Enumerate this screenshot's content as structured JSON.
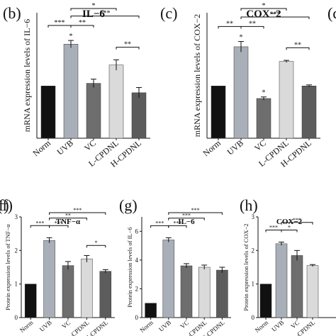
{
  "chart_data": [
    {
      "panel": "(b)",
      "type": "bar",
      "title": "IL−6",
      "ylabel": "mRNA expression levels of IL−6",
      "categories": [
        "Norm",
        "UVB",
        "VC",
        "L-CPDNL",
        "H-CPDNL"
      ],
      "values": [
        1.0,
        1.8,
        1.05,
        1.4,
        0.87
      ],
      "errors": [
        0,
        0.07,
        0.08,
        0.1,
        0.1
      ],
      "colors": [
        "#111111",
        "#a9afb8",
        "#6e6e6e",
        "#dadada",
        "#5c5c5c"
      ],
      "ylim": [
        0,
        2.4
      ],
      "yticks": [],
      "point_marks": [
        {
          "index": 1,
          "text": "*"
        }
      ],
      "brackets": [
        {
          "from": 0,
          "to": 1,
          "label": "***"
        },
        {
          "from": 1,
          "to": 2,
          "label": "**"
        },
        {
          "from": 1,
          "to": 4,
          "label": "***"
        },
        {
          "from": 1,
          "to": 3,
          "label": "*"
        },
        {
          "from": 3,
          "to": 4,
          "label": "**"
        }
      ]
    },
    {
      "panel": "(c)",
      "type": "bar",
      "title": "COX−2",
      "ylabel": "mRNA expression levels of COX−2",
      "categories": [
        "Norm",
        "UVB",
        "VC",
        "L-CPDNL",
        "H-CPDNL"
      ],
      "values": [
        1.0,
        1.75,
        0.76,
        1.47,
        1.0
      ],
      "errors": [
        0,
        0.1,
        0.03,
        0.02,
        0.02
      ],
      "colors": [
        "#111111",
        "#a9afb8",
        "#6e6e6e",
        "#dadada",
        "#5c5c5c"
      ],
      "ylim": [
        0,
        2.4
      ],
      "yticks": [],
      "point_marks": [
        {
          "index": 1,
          "text": "*"
        },
        {
          "index": 2,
          "text": "*"
        }
      ],
      "brackets": [
        {
          "from": 0,
          "to": 1,
          "label": "**"
        },
        {
          "from": 1,
          "to": 2,
          "label": "**"
        },
        {
          "from": 1,
          "to": 4,
          "label": "***"
        },
        {
          "from": 1,
          "to": 3,
          "label": "*"
        },
        {
          "from": 3,
          "to": 4,
          "label": "**"
        }
      ]
    },
    {
      "panel": "(f)",
      "type": "bar",
      "title": "TNF−α",
      "ylabel": "Protein expression levels of TNF−α",
      "categories": [
        "Norm",
        "UVB",
        "VC",
        "L-CPDNL",
        "H-CPDNL"
      ],
      "values": [
        1.0,
        2.3,
        1.55,
        1.75,
        1.38
      ],
      "errors": [
        0,
        0.08,
        0.12,
        0.1,
        0.05
      ],
      "colors": [
        "#111111",
        "#a9afb8",
        "#6e6e6e",
        "#dadada",
        "#5c5c5c"
      ],
      "ylim": [
        0,
        3.0
      ],
      "yticks": [
        0,
        1,
        2,
        3
      ],
      "point_marks": [],
      "brackets": [
        {
          "from": 0,
          "to": 1,
          "label": "***"
        },
        {
          "from": 1,
          "to": 2,
          "label": "***"
        },
        {
          "from": 1,
          "to": 3,
          "label": "**"
        },
        {
          "from": 1,
          "to": 4,
          "label": "***"
        },
        {
          "from": 3,
          "to": 4,
          "label": "*"
        }
      ]
    },
    {
      "panel": "(g)",
      "type": "bar",
      "title": "IL−6",
      "ylabel": "Protein expression levels of IL−6",
      "categories": [
        "Norm",
        "UVB",
        "VC",
        "L-CPDNL",
        "H-CPDNL"
      ],
      "values": [
        1.0,
        5.4,
        3.6,
        3.5,
        3.3
      ],
      "errors": [
        0,
        0.15,
        0.15,
        0.15,
        0.2
      ],
      "colors": [
        "#111111",
        "#a9afb8",
        "#6e6e6e",
        "#dadada",
        "#5c5c5c"
      ],
      "ylim": [
        0,
        7.0
      ],
      "yticks": [
        0,
        2,
        4,
        6
      ],
      "point_marks": [],
      "brackets": [
        {
          "from": 0,
          "to": 1,
          "label": "***"
        },
        {
          "from": 1,
          "to": 2,
          "label": "***"
        },
        {
          "from": 1,
          "to": 3,
          "label": "***"
        },
        {
          "from": 1,
          "to": 4,
          "label": "***"
        }
      ]
    },
    {
      "panel": "(h)",
      "type": "bar",
      "title": "COX−2",
      "ylabel": "Protein expression levels of COX−2",
      "categories": [
        "Norm",
        "UVB",
        "VC",
        "L-CPDNL"
      ],
      "values": [
        1.0,
        2.2,
        1.85,
        1.55
      ],
      "errors": [
        0,
        0.05,
        0.15,
        0.03
      ],
      "colors": [
        "#111111",
        "#a9afb8",
        "#6e6e6e",
        "#dadada"
      ],
      "ylim": [
        0,
        3.0
      ],
      "yticks": [
        0,
        1,
        2,
        3
      ],
      "point_marks": [],
      "brackets": [
        {
          "from": 0,
          "to": 1,
          "label": "***"
        },
        {
          "from": 1,
          "to": 2,
          "label": "*"
        },
        {
          "from": 1,
          "to": 3,
          "label": "***"
        }
      ]
    }
  ],
  "edge_labels": {
    "top_right": "(d",
    "bottom_left": "f)"
  }
}
